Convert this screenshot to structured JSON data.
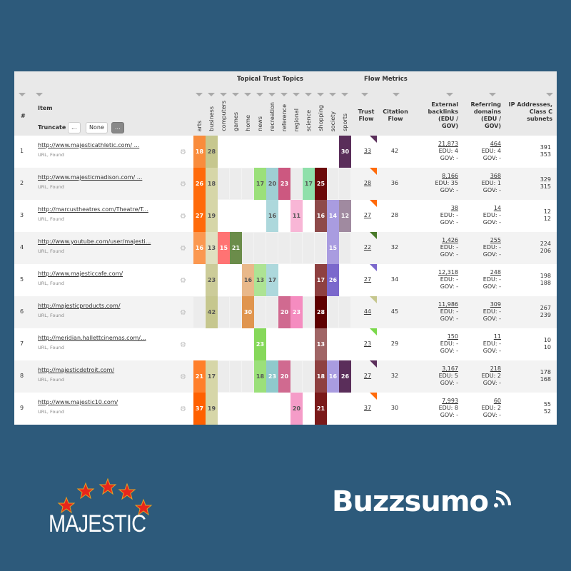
{
  "header": {
    "group_topics": "Topical Trust Topics",
    "group_flow": "Flow Metrics",
    "col_num": "#",
    "col_item": "Item",
    "truncate_label": "Truncate",
    "truncate_options": [
      "...",
      "None",
      "..."
    ],
    "topics": [
      "arts",
      "business",
      "computers",
      "games",
      "home",
      "news",
      "recreation",
      "reference",
      "regional",
      "science",
      "shopping",
      "society",
      "sports"
    ],
    "trust_flow": "Trust Flow",
    "citation_flow": "Citation Flow",
    "ext_backlinks": "External backlinks (EDU / GOV)",
    "ref_domains": "Referring domains (EDU / GOV)",
    "ip": "IP Addresses, Class C subnets"
  },
  "rows": [
    {
      "n": "1",
      "url": "http://www.majesticathletic.com/ ...",
      "sub": "URL, Found",
      "topics": {
        "arts": [
          18,
          "#f98c3c"
        ],
        "business": [
          28,
          "#c6c78e"
        ],
        "sports": [
          30,
          "#5a2e5a"
        ]
      },
      "tf": "33",
      "tf_color": "#5a2e5a",
      "cf": "42",
      "ext": "21,873",
      "ext_edu": "EDU: 4",
      "ext_gov": "GOV: -",
      "ref": "464",
      "ref_edu": "EDU: 4",
      "ref_gov": "GOV: -",
      "ip": "391",
      "subnets": "353"
    },
    {
      "n": "2",
      "url": "http://www.majesticmadison.com/ ...",
      "sub": "URL, Found",
      "topics": {
        "arts": [
          26,
          "#ff6a0a"
        ],
        "business": [
          18,
          "#d6d6a8"
        ],
        "news": [
          17,
          "#9be07a"
        ],
        "recreation": [
          20,
          "#9fcfd3"
        ],
        "reference": [
          23,
          "#cc5880"
        ],
        "science": [
          17,
          "#8fe0aa"
        ],
        "shopping": [
          25,
          "#6b0a0a"
        ]
      },
      "tf": "28",
      "tf_color": "#ff6a0a",
      "cf": "36",
      "ext": "8,166",
      "ext_edu": "EDU: 35",
      "ext_gov": "GOV: -",
      "ref": "368",
      "ref_edu": "EDU: 1",
      "ref_gov": "GOV: -",
      "ip": "329",
      "subnets": "315"
    },
    {
      "n": "3",
      "url": "http://marcustheatres.com/Theatre/T...",
      "sub": "URL, Found",
      "topics": {
        "arts": [
          27,
          "#ff6a0a"
        ],
        "business": [
          19,
          "#d6d6a8"
        ],
        "recreation": [
          16,
          "#add8dc"
        ],
        "regional": [
          11,
          "#f8b6d6"
        ],
        "shopping": [
          16,
          "#8e4a4a"
        ],
        "society": [
          14,
          "#a99ce0"
        ],
        "sports": [
          12,
          "#a08aa0"
        ]
      },
      "tf": "27",
      "tf_color": "#ff6a0a",
      "cf": "28",
      "ext": "38",
      "ext_edu": "EDU: -",
      "ext_gov": "GOV: -",
      "ref": "14",
      "ref_edu": "EDU: -",
      "ref_gov": "GOV: -",
      "ip": "12",
      "subnets": "12"
    },
    {
      "n": "4",
      "url": "http://www.youtube.com/user/majesti...",
      "sub": "URL, Found",
      "topics": {
        "arts": [
          16,
          "#fb9850"
        ],
        "business": [
          13,
          "#e0e0c0"
        ],
        "computers": [
          15,
          "#ff7373"
        ],
        "games": [
          21,
          "#6b8c4a"
        ],
        "society": [
          15,
          "#a99ce0"
        ]
      },
      "tf": "22",
      "tf_color": "#4a7a2a",
      "cf": "32",
      "ext": "1,426",
      "ext_edu": "EDU: -",
      "ext_gov": "GOV: -",
      "ref": "255",
      "ref_edu": "EDU: -",
      "ref_gov": "GOV: -",
      "ip": "224",
      "subnets": "206"
    },
    {
      "n": "5",
      "url": "http://www.majesticcafe.com/",
      "sub": "URL, Found",
      "topics": {
        "business": [
          23,
          "#cccc99"
        ],
        "home": [
          16,
          "#e9b88a"
        ],
        "news": [
          13,
          "#ade394"
        ],
        "recreation": [
          17,
          "#add8dc"
        ],
        "shopping": [
          17,
          "#8e4040"
        ],
        "society": [
          26,
          "#7b68cc"
        ]
      },
      "tf": "27",
      "tf_color": "#7b68cc",
      "cf": "34",
      "ext": "12,318",
      "ext_edu": "EDU: -",
      "ext_gov": "GOV: -",
      "ref": "248",
      "ref_edu": "EDU: -",
      "ref_gov": "GOV: -",
      "ip": "198",
      "subnets": "188"
    },
    {
      "n": "6",
      "url": "http://majesticproducts.com/",
      "sub": "URL, Found",
      "topics": {
        "business": [
          42,
          "#c6c78e"
        ],
        "home": [
          30,
          "#e0954f"
        ],
        "reference": [
          20,
          "#d06a90"
        ],
        "regional": [
          23,
          "#f58cc0"
        ],
        "shopping": [
          28,
          "#5e0000"
        ]
      },
      "tf": "44",
      "tf_color": "#c6c78e",
      "cf": "45",
      "ext": "11,986",
      "ext_edu": "EDU: -",
      "ext_gov": "GOV: -",
      "ref": "309",
      "ref_edu": "EDU: -",
      "ref_gov": "GOV: -",
      "ip": "267",
      "subnets": "239"
    },
    {
      "n": "7",
      "url": "http://meridian.hallettcinemas.com/...",
      "sub": "URL, Found",
      "topics": {
        "news": [
          23,
          "#86d85a"
        ],
        "shopping": [
          13,
          "#a06565"
        ]
      },
      "tf": "23",
      "tf_color": "#7ad84a",
      "cf": "29",
      "ext": "150",
      "ext_edu": "EDU: -",
      "ext_gov": "GOV: -",
      "ref": "11",
      "ref_edu": "EDU: -",
      "ref_gov": "GOV: -",
      "ip": "10",
      "subnets": "10"
    },
    {
      "n": "8",
      "url": "http://majesticdetroit.com/",
      "sub": "URL, Found",
      "topics": {
        "arts": [
          21,
          "#ff7f2a"
        ],
        "business": [
          17,
          "#d6d6a8"
        ],
        "news": [
          18,
          "#9be07a"
        ],
        "recreation": [
          23,
          "#8fc9cc"
        ],
        "reference": [
          20,
          "#d06a90"
        ],
        "shopping": [
          18,
          "#8e4040"
        ],
        "society": [
          16,
          "#a99ce0"
        ],
        "sports": [
          26,
          "#5a2e5a"
        ]
      },
      "tf": "27",
      "tf_color": "#5a2e5a",
      "cf": "32",
      "ext": "3,167",
      "ext_edu": "EDU: 5",
      "ext_gov": "GOV: -",
      "ref": "218",
      "ref_edu": "EDU: 2",
      "ref_gov": "GOV: -",
      "ip": "178",
      "subnets": "168"
    },
    {
      "n": "9",
      "url": "http://www.majestic10.com/",
      "sub": "URL, Found",
      "topics": {
        "arts": [
          37,
          "#ff6000"
        ],
        "business": [
          19,
          "#d6d6a8"
        ],
        "regional": [
          20,
          "#f59cc8"
        ],
        "shopping": [
          21,
          "#7a1a1a"
        ]
      },
      "tf": "37",
      "tf_color": "#ff6a0a",
      "cf": "30",
      "ext": "7,993",
      "ext_edu": "EDU: 8",
      "ext_gov": "GOV: -",
      "ref": "60",
      "ref_edu": "EDU: 2",
      "ref_gov": "GOV: -",
      "ip": "55",
      "subnets": "52"
    }
  ],
  "logos": {
    "majestic": "MAJESTIC",
    "buzzsumo": "Buzzsumo"
  },
  "colors": {
    "background": "#2d5a7b",
    "star": "#e8261c"
  }
}
